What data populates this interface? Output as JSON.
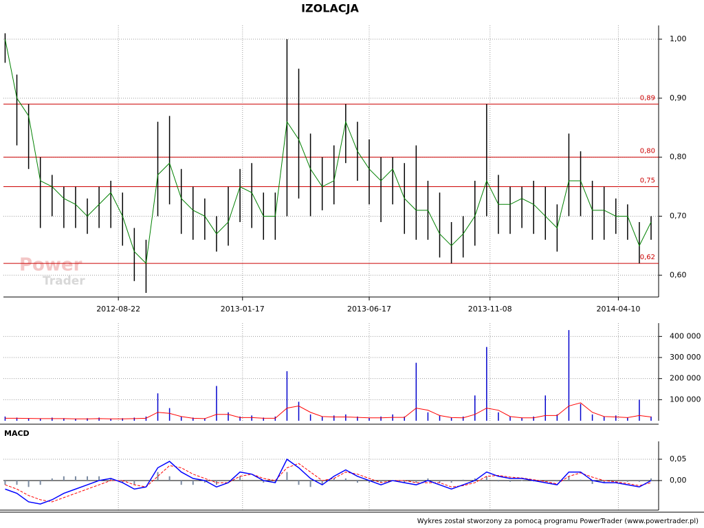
{
  "chart_data": [
    {
      "type": "hilo",
      "title": "IZOLACJA",
      "color": "#000000",
      "ma_color": "#008000",
      "x": [
        "2012-04-09",
        "2012-04-23",
        "2012-05-07",
        "2012-05-21",
        "2012-06-04",
        "2012-06-18",
        "2012-07-02",
        "2012-07-16",
        "2012-07-30",
        "2012-08-13",
        "2012-08-27",
        "2012-09-10",
        "2012-09-24",
        "2012-10-08",
        "2012-10-22",
        "2012-11-05",
        "2012-11-19",
        "2012-12-03",
        "2012-12-17",
        "2012-12-31",
        "2013-01-14",
        "2013-01-28",
        "2013-02-11",
        "2013-02-25",
        "2013-03-11",
        "2013-03-25",
        "2013-04-08",
        "2013-04-22",
        "2013-05-06",
        "2013-05-20",
        "2013-06-03",
        "2013-06-17",
        "2013-07-01",
        "2013-07-15",
        "2013-07-29",
        "2013-08-12",
        "2013-08-26",
        "2013-09-09",
        "2013-09-23",
        "2013-10-07",
        "2013-10-21",
        "2013-11-04",
        "2013-11-18",
        "2013-12-02",
        "2013-12-16",
        "2013-12-30",
        "2014-01-13",
        "2014-01-27",
        "2014-02-10",
        "2014-02-24",
        "2014-03-10",
        "2014-03-24",
        "2014-04-07",
        "2014-04-21",
        "2014-05-05",
        "2014-05-19"
      ],
      "high": [
        1.01,
        0.94,
        0.89,
        0.8,
        0.77,
        0.75,
        0.75,
        0.73,
        0.75,
        0.76,
        0.74,
        0.68,
        0.66,
        0.86,
        0.87,
        0.78,
        0.75,
        0.73,
        0.7,
        0.75,
        0.78,
        0.79,
        0.74,
        0.74,
        1.0,
        0.95,
        0.84,
        0.8,
        0.82,
        0.89,
        0.86,
        0.83,
        0.8,
        0.8,
        0.79,
        0.82,
        0.76,
        0.74,
        0.69,
        0.7,
        0.76,
        0.89,
        0.77,
        0.75,
        0.75,
        0.76,
        0.75,
        0.72,
        0.84,
        0.81,
        0.76,
        0.75,
        0.73,
        0.72,
        0.69,
        0.7
      ],
      "low": [
        0.96,
        0.82,
        0.78,
        0.68,
        0.7,
        0.68,
        0.68,
        0.67,
        0.68,
        0.68,
        0.65,
        0.59,
        0.57,
        0.7,
        0.72,
        0.67,
        0.66,
        0.66,
        0.64,
        0.65,
        0.69,
        0.68,
        0.66,
        0.66,
        0.7,
        0.73,
        0.7,
        0.71,
        0.72,
        0.79,
        0.76,
        0.72,
        0.69,
        0.72,
        0.67,
        0.66,
        0.66,
        0.63,
        0.62,
        0.63,
        0.65,
        0.7,
        0.67,
        0.67,
        0.68,
        0.67,
        0.66,
        0.64,
        0.7,
        0.7,
        0.66,
        0.66,
        0.67,
        0.66,
        0.62,
        0.66
      ],
      "ma": [
        1.0,
        0.9,
        0.87,
        0.76,
        0.75,
        0.73,
        0.72,
        0.7,
        0.72,
        0.74,
        0.7,
        0.64,
        0.62,
        0.77,
        0.79,
        0.73,
        0.71,
        0.7,
        0.67,
        0.69,
        0.75,
        0.74,
        0.7,
        0.7,
        0.86,
        0.83,
        0.78,
        0.75,
        0.76,
        0.86,
        0.81,
        0.78,
        0.76,
        0.78,
        0.73,
        0.71,
        0.71,
        0.67,
        0.65,
        0.67,
        0.7,
        0.76,
        0.72,
        0.72,
        0.73,
        0.72,
        0.7,
        0.68,
        0.76,
        0.76,
        0.71,
        0.71,
        0.7,
        0.7,
        0.65,
        0.69
      ],
      "xlim": [
        "2012-04-07",
        "2014-05-28"
      ],
      "xticks": [
        "2012-08-22",
        "2013-01-17",
        "2013-06-17",
        "2013-11-08",
        "2014-04-10"
      ],
      "ylim": [
        0.563,
        1.014
      ],
      "yticks": [
        {
          "value": 0.6,
          "label": "0,60"
        },
        {
          "value": 0.7,
          "label": "0,70"
        },
        {
          "value": 0.8,
          "label": "0,80"
        },
        {
          "value": 0.9,
          "label": "0,90"
        },
        {
          "value": 1.0,
          "label": "1,00"
        }
      ],
      "levels": [
        {
          "value": 0.89,
          "label": "0,89"
        },
        {
          "value": 0.8,
          "label": "0,80"
        },
        {
          "value": 0.75,
          "label": "0,75"
        },
        {
          "value": 0.62,
          "label": "0,62"
        }
      ],
      "level_color": "#cc0000",
      "grid": true
    },
    {
      "type": "volume",
      "color": "#0000cc",
      "ma_color": "#ff0000",
      "values": [
        20000,
        15000,
        12000,
        10000,
        15000,
        12000,
        10000,
        12000,
        15000,
        10000,
        12000,
        15000,
        20000,
        130000,
        60000,
        20000,
        15000,
        12000,
        165000,
        40000,
        20000,
        25000,
        15000,
        20000,
        235000,
        90000,
        30000,
        20000,
        25000,
        30000,
        20000,
        15000,
        20000,
        30000,
        20000,
        275000,
        40000,
        25000,
        15000,
        20000,
        120000,
        350000,
        40000,
        20000,
        15000,
        20000,
        120000,
        30000,
        430000,
        80000,
        30000,
        20000,
        25000,
        15000,
        100000,
        20000
      ],
      "ma": [
        12000,
        12000,
        11000,
        10000,
        10000,
        10000,
        9000,
        9000,
        10000,
        9000,
        9000,
        10000,
        12000,
        40000,
        35000,
        20000,
        12000,
        10000,
        30000,
        30000,
        15000,
        15000,
        12000,
        12000,
        60000,
        70000,
        40000,
        20000,
        18000,
        18000,
        16000,
        14000,
        14000,
        16000,
        16000,
        60000,
        50000,
        25000,
        15000,
        14000,
        30000,
        60000,
        50000,
        20000,
        14000,
        14000,
        25000,
        25000,
        70000,
        85000,
        40000,
        20000,
        18000,
        15000,
        25000,
        18000
      ],
      "ylim": [
        0,
        437000
      ],
      "yticks": [
        {
          "value": 100000,
          "label": "100 000"
        },
        {
          "value": 200000,
          "label": "200 000"
        },
        {
          "value": 300000,
          "label": "300 000"
        },
        {
          "value": 400000,
          "label": "400 000"
        }
      ],
      "grid": true
    },
    {
      "type": "macd",
      "title": "MACD",
      "macd_color": "#0000ff",
      "signal_color": "#ff0000",
      "hist_color": "#7a8aa0",
      "macd": [
        -0.02,
        -0.03,
        -0.05,
        -0.055,
        -0.045,
        -0.03,
        -0.02,
        -0.01,
        0.0,
        0.005,
        -0.005,
        -0.02,
        -0.015,
        0.03,
        0.045,
        0.02,
        0.005,
        0.0,
        -0.015,
        -0.005,
        0.02,
        0.015,
        0.0,
        -0.005,
        0.05,
        0.03,
        0.005,
        -0.01,
        0.01,
        0.025,
        0.01,
        0.0,
        -0.01,
        0.0,
        -0.005,
        -0.01,
        0.0,
        -0.01,
        -0.02,
        -0.01,
        0.0,
        0.02,
        0.01,
        0.005,
        0.005,
        0.0,
        -0.005,
        -0.01,
        0.02,
        0.02,
        0.0,
        -0.005,
        -0.005,
        -0.01,
        -0.015,
        0.0
      ],
      "signal": [
        -0.01,
        -0.02,
        -0.035,
        -0.045,
        -0.05,
        -0.04,
        -0.03,
        -0.02,
        -0.01,
        0.0,
        0.0,
        -0.01,
        -0.015,
        0.01,
        0.035,
        0.03,
        0.015,
        0.005,
        -0.005,
        -0.005,
        0.01,
        0.015,
        0.005,
        0.0,
        0.03,
        0.04,
        0.02,
        0.0,
        0.005,
        0.02,
        0.015,
        0.005,
        -0.005,
        0.0,
        0.0,
        -0.005,
        -0.005,
        -0.005,
        -0.015,
        -0.012,
        -0.005,
        0.01,
        0.012,
        0.008,
        0.006,
        0.002,
        -0.002,
        -0.008,
        0.01,
        0.018,
        0.008,
        0.0,
        -0.003,
        -0.007,
        -0.012,
        -0.005
      ],
      "histogram": [
        -0.01,
        -0.01,
        -0.015,
        -0.01,
        0.005,
        0.01,
        0.01,
        0.01,
        0.01,
        0.005,
        -0.005,
        -0.01,
        0,
        0.02,
        0.01,
        -0.01,
        -0.01,
        -0.005,
        -0.01,
        0,
        0.01,
        0,
        -0.005,
        -0.005,
        0.02,
        -0.01,
        -0.015,
        -0.01,
        0.005,
        0.005,
        -0.005,
        -0.005,
        -0.005,
        0,
        -0.005,
        -0.005,
        0.005,
        -0.005,
        -0.005,
        0.002,
        0.005,
        0.01,
        -0.002,
        -0.003,
        -0.001,
        -0.002,
        -0.003,
        -0.002,
        0.01,
        0.002,
        -0.008,
        -0.005,
        -0.002,
        -0.003,
        -0.003,
        0.005
      ],
      "ylim": [
        -0.0694,
        0.079
      ],
      "yticks": [
        {
          "value": 0,
          "label": "0,00"
        },
        {
          "value": 0.05,
          "label": "0,05"
        }
      ],
      "grid": true
    }
  ],
  "watermark": {
    "line1": "Power",
    "line2": "Trader"
  },
  "footer": "Wykres został stworzony za pomocą programu PowerTrader (www.powertrader.pl)"
}
